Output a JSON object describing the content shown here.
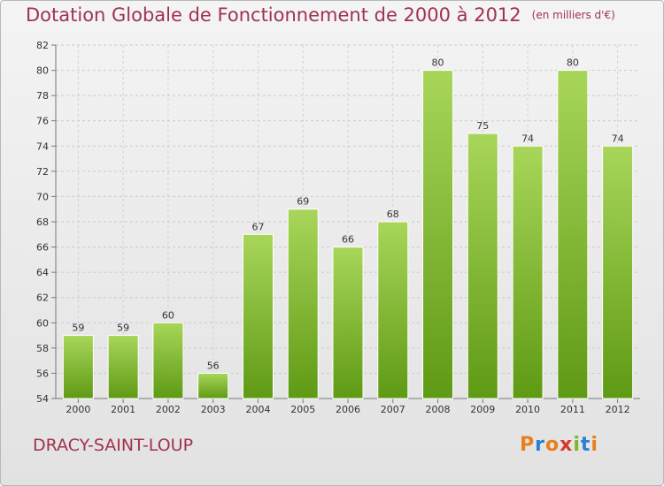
{
  "title": "Dotation Globale de Fonctionnement de 2000 à 2012",
  "unit_note": "(en milliers d'€)",
  "commune": "DRACY-SAINT-LOUP",
  "logo": {
    "letters": [
      "P",
      "r",
      "o",
      "x",
      "i",
      "t",
      "i"
    ],
    "colors": [
      "#e8801a",
      "#2b7fd4",
      "#e8801a",
      "#d63a2f",
      "#7ab828",
      "#2b7fd4",
      "#e8801a"
    ]
  },
  "colors": {
    "bar_top": "#a8d65a",
    "bar_bottom": "#5f9a14",
    "title": "#a0334f"
  },
  "chart_data": {
    "type": "bar",
    "categories": [
      "2000",
      "2001",
      "2002",
      "2003",
      "2004",
      "2005",
      "2006",
      "2007",
      "2008",
      "2009",
      "2010",
      "2011",
      "2012"
    ],
    "values": [
      59,
      59,
      60,
      56,
      67,
      69,
      66,
      68,
      80,
      75,
      74,
      80,
      74
    ],
    "data_labels": [
      "59",
      "59",
      "60",
      "56",
      "67",
      "69",
      "66",
      "68",
      "80",
      "75",
      "74",
      "80",
      "74"
    ],
    "ylim": [
      54,
      82
    ],
    "yticks": [
      54,
      56,
      58,
      60,
      62,
      64,
      66,
      68,
      70,
      72,
      74,
      76,
      78,
      80,
      82
    ],
    "grid": true,
    "xlabel": "",
    "ylabel": ""
  }
}
